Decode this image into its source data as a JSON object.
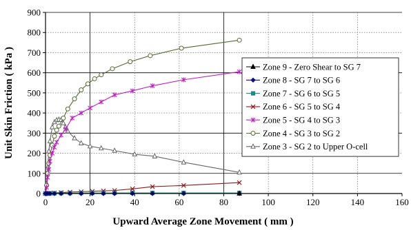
{
  "chart_data": {
    "type": "line",
    "title": "",
    "xlabel": "Upward Average Zone Movement ( mm )",
    "ylabel": "Unit Skin Friction ( kPa )",
    "xlim": [
      0,
      160
    ],
    "ylim": [
      0,
      900
    ],
    "xticks": [
      0,
      20,
      40,
      60,
      80,
      100,
      120,
      140,
      160
    ],
    "yticks": [
      0,
      100,
      200,
      300,
      400,
      500,
      600,
      700,
      800,
      900
    ],
    "xtick_labels": [
      "0",
      "20",
      "40",
      "60",
      "80",
      "100",
      "120",
      "140",
      "160"
    ],
    "ytick_labels": [
      "0",
      "100",
      "200",
      "300",
      "400",
      "500",
      "600",
      "700",
      "800",
      "900"
    ],
    "grid": {
      "major_x": [
        20,
        80
      ],
      "major_y": [
        100,
        300,
        600,
        900
      ]
    },
    "legend_position": "right",
    "series": [
      {
        "name": "Zone 9 - Zero Shear to SG 7",
        "color": "#000000",
        "marker": "triangle-filled",
        "x": [
          0,
          87
        ],
        "y": [
          0,
          0
        ]
      },
      {
        "name": "Zone 8 - SG 7 to SG 6",
        "color": "#0a0a8c",
        "marker": "diamond-filled",
        "x": [
          0,
          0.5,
          1,
          2,
          4,
          7,
          11,
          16,
          21,
          26,
          31,
          39,
          48,
          62,
          87
        ],
        "y": [
          0,
          0,
          0,
          0,
          0,
          0,
          0,
          0,
          0,
          0,
          0,
          0,
          0,
          0,
          0
        ]
      },
      {
        "name": "Zone 7 - SG 6 to SG 5",
        "color": "#1a8a8a",
        "marker": "square-filled",
        "x": [
          0,
          1,
          2,
          4,
          7,
          11,
          16,
          21,
          26,
          31,
          39,
          48,
          62,
          87
        ],
        "y": [
          0,
          0,
          0,
          1,
          2,
          2,
          3,
          3,
          3,
          3,
          3,
          3,
          3,
          3
        ]
      },
      {
        "name": "Zone 6 - SG 5 to SG 4",
        "color": "#8b1a1a",
        "marker": "x",
        "x": [
          0,
          1,
          2,
          4,
          7,
          11,
          16,
          21,
          26,
          31,
          39,
          48,
          62,
          87
        ],
        "y": [
          0,
          1,
          2,
          3,
          5,
          7,
          9,
          11,
          13,
          15,
          23,
          34,
          40,
          54
        ]
      },
      {
        "name": "Zone 5 - SG 4 to SG 3",
        "color": "#c020c0",
        "marker": "star",
        "x": [
          0,
          0.5,
          1,
          1.5,
          2,
          3,
          4,
          5,
          7,
          9,
          12,
          16,
          20,
          25,
          31,
          39,
          48,
          62,
          87
        ],
        "y": [
          0,
          30,
          80,
          120,
          160,
          200,
          230,
          255,
          290,
          320,
          375,
          400,
          425,
          455,
          490,
          510,
          535,
          565,
          605
        ]
      },
      {
        "name": "Zone 4 - SG 3 to SG 2",
        "color": "#556b2f",
        "marker": "circle-open",
        "x": [
          0,
          0.5,
          1,
          1.5,
          2,
          3,
          4,
          5,
          6,
          8,
          10,
          13,
          16,
          19,
          22,
          25,
          30,
          38,
          47,
          61,
          87
        ],
        "y": [
          0,
          40,
          100,
          150,
          190,
          240,
          285,
          315,
          335,
          375,
          420,
          470,
          515,
          545,
          570,
          590,
          620,
          655,
          685,
          722,
          762
        ]
      },
      {
        "name": "Zone 3 - SG 2 to Upper O-cell",
        "color": "#666666",
        "marker": "triangle-open",
        "x": [
          0,
          0.5,
          1,
          1.5,
          2,
          3,
          4,
          5,
          6,
          7,
          8,
          9,
          10,
          13,
          16,
          20,
          25,
          31,
          40,
          49,
          62,
          87
        ],
        "y": [
          0,
          50,
          130,
          210,
          260,
          330,
          355,
          365,
          368,
          366,
          350,
          330,
          310,
          275,
          250,
          235,
          225,
          213,
          195,
          185,
          155,
          105
        ]
      }
    ]
  }
}
